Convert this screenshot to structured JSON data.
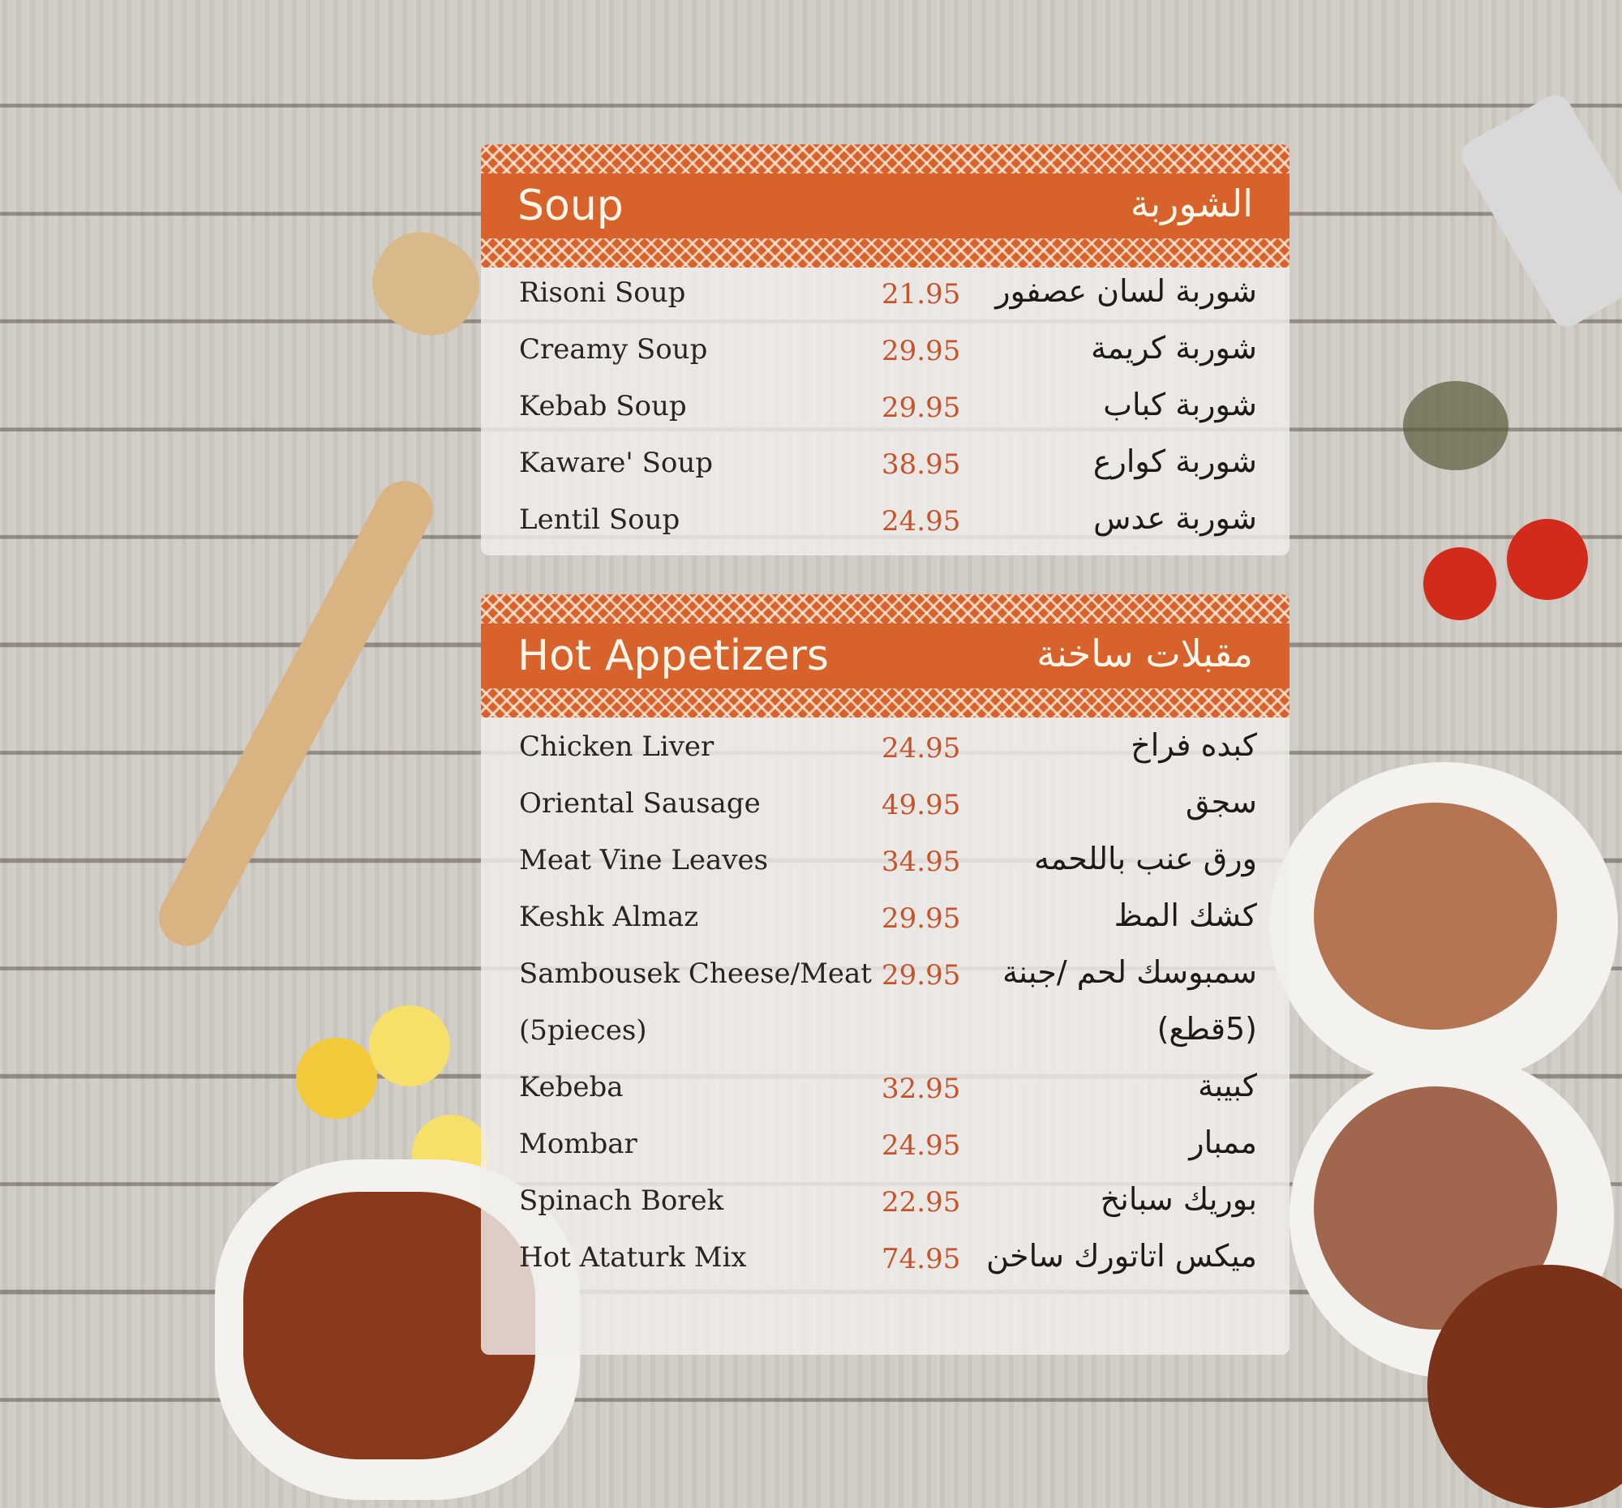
{
  "sections": [
    {
      "title_en": "Soup",
      "title_ar": "الشوربة",
      "items": [
        {
          "name_en": "Risoni Soup",
          "price": "21.95",
          "name_ar": "شوربة لسان عصفور"
        },
        {
          "name_en": "Creamy Soup",
          "price": "29.95",
          "name_ar": "شوربة كريمة"
        },
        {
          "name_en": "Kebab Soup",
          "price": "29.95",
          "name_ar": "شوربة كباب"
        },
        {
          "name_en": "Kaware' Soup",
          "price": "38.95",
          "name_ar": "شوربة كوارع"
        },
        {
          "name_en": "Lentil Soup",
          "price": "24.95",
          "name_ar": "شوربة عدس"
        }
      ]
    },
    {
      "title_en": "Hot Appetizers",
      "title_ar": "مقبلات ساخنة",
      "items": [
        {
          "name_en": "Chicken Liver",
          "price": "24.95",
          "name_ar": "كبده فراخ"
        },
        {
          "name_en": "Oriental Sausage",
          "price": "49.95",
          "name_ar": "سجق"
        },
        {
          "name_en": "Meat Vine Leaves",
          "price": "34.95",
          "name_ar": "ورق عنب باللحمه"
        },
        {
          "name_en": "Keshk Almaz",
          "price": "29.95",
          "name_ar": "كشك المظ"
        },
        {
          "name_en": "Sambousek Cheese/Meat",
          "price": "29.95",
          "name_ar": "سمبوسك لحم /جبنة"
        },
        {
          "name_en": "(5pieces)",
          "price": "",
          "name_ar": "(5قطع)"
        },
        {
          "name_en": "Kebeba",
          "price": "32.95",
          "name_ar": "كبيبة"
        },
        {
          "name_en": "Mombar",
          "price": "24.95",
          "name_ar": "ممبار"
        },
        {
          "name_en": "Spinach Borek",
          "price": "22.95",
          "name_ar": "بوريك سبانخ"
        },
        {
          "name_en": "Hot Ataturk Mix",
          "price": "74.95",
          "name_ar": "ميكس اتاتورك ساخن"
        }
      ]
    }
  ],
  "colors": {
    "accent": "#d8622b",
    "price": "#c8532a"
  }
}
